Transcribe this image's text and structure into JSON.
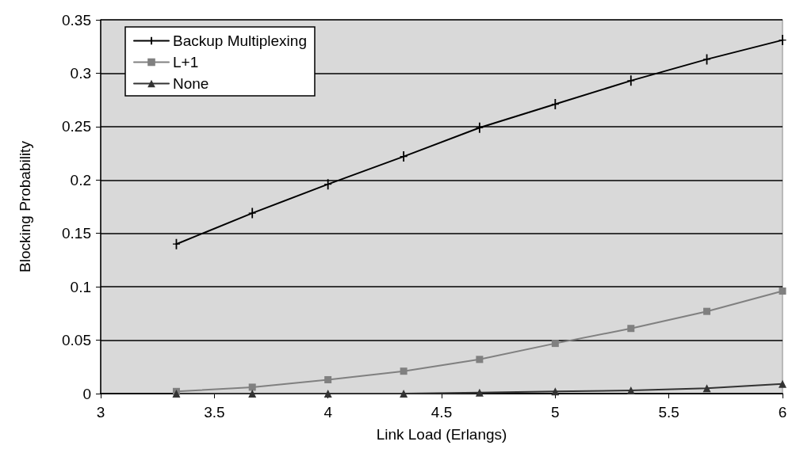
{
  "chart_data": {
    "type": "line",
    "xlabel": "Link Load (Erlangs)",
    "ylabel": "Blocking Probability",
    "x": [
      3.333,
      3.667,
      4,
      4.333,
      4.667,
      5,
      5.333,
      5.667,
      6
    ],
    "series": [
      {
        "name": "Backup Multiplexing",
        "color": "#000000",
        "marker": "cross",
        "values": [
          0.14,
          0.169,
          0.196,
          0.222,
          0.249,
          0.271,
          0.293,
          0.313,
          0.331
        ]
      },
      {
        "name": "L+1",
        "color": "#808080",
        "marker": "square",
        "values": [
          0.002,
          0.006,
          0.013,
          0.021,
          0.032,
          0.047,
          0.061,
          0.077,
          0.096
        ]
      },
      {
        "name": "None",
        "color": "#333333",
        "marker": "triangle",
        "values": [
          0,
          0,
          0,
          0,
          0.001,
          0.002,
          0.003,
          0.005,
          0.009
        ]
      }
    ],
    "xlim": [
      3,
      6
    ],
    "xticks": [
      3,
      3.5,
      4,
      4.5,
      5,
      5.5,
      6
    ],
    "ylim": [
      0,
      0.35
    ],
    "yticks": [
      0,
      0.05,
      0.1,
      0.15,
      0.2,
      0.25,
      0.3,
      0.35
    ],
    "grid": "y",
    "legend": "top left",
    "line_style": "solid"
  }
}
